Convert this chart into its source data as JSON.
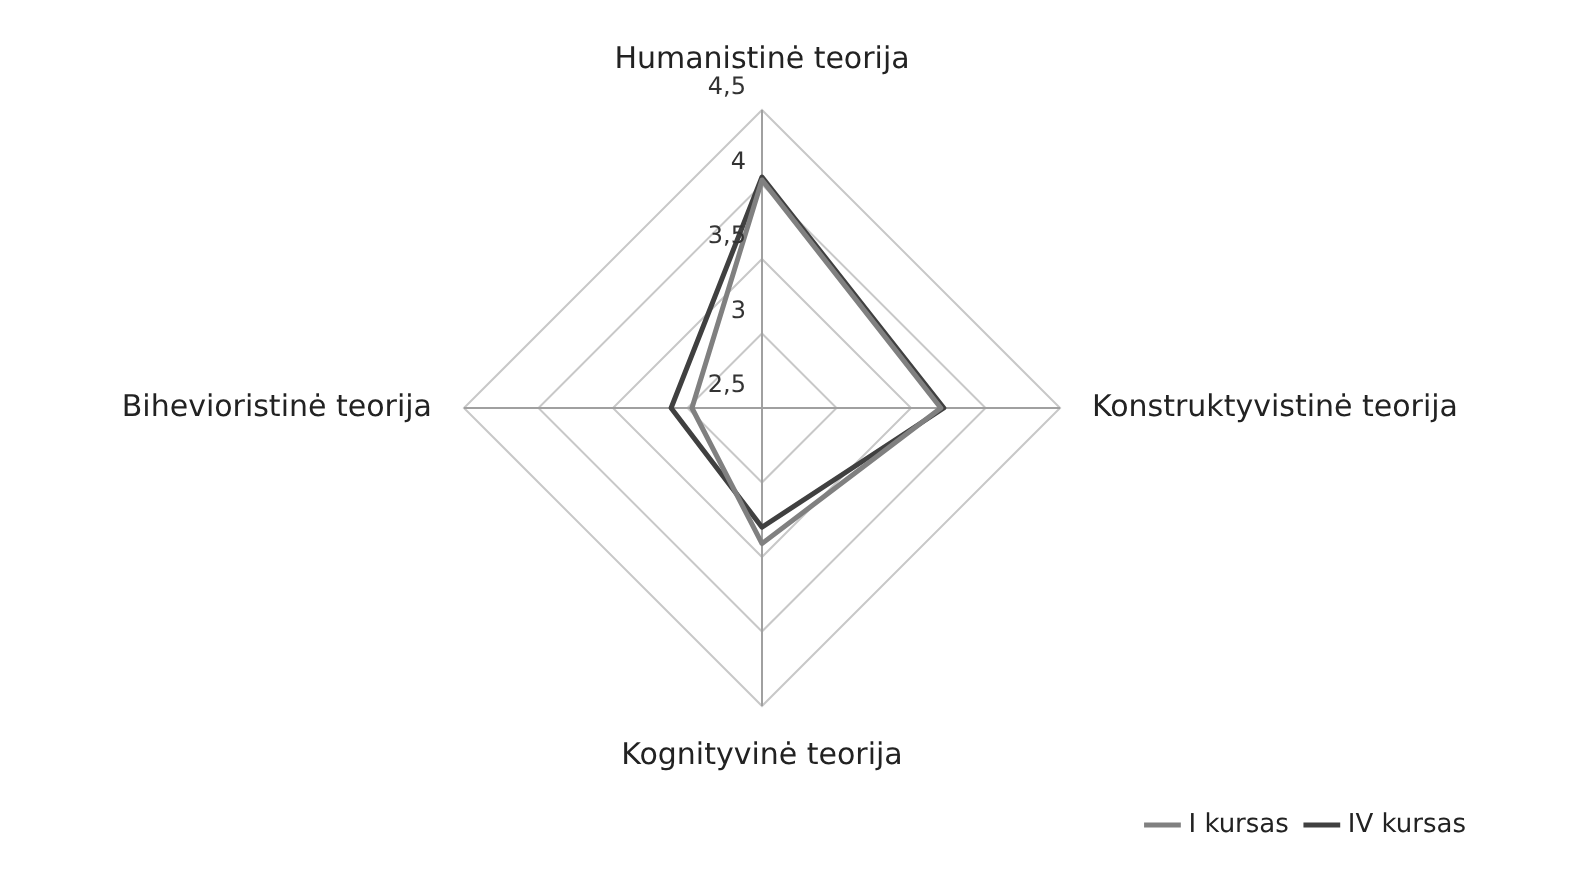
{
  "chart_data": {
    "type": "radar",
    "categories": [
      "Humanistinė teorija",
      "Konstruktyvistinė teorija",
      "Kognityvinė teorija",
      "Bihevioristinė teorija"
    ],
    "series": [
      {
        "name": "I kursas",
        "color": "#808080",
        "values": [
          4.03,
          3.7,
          3.41,
          2.97
        ]
      },
      {
        "name": "IV kursas",
        "color": "#404040",
        "values": [
          4.05,
          3.72,
          3.3,
          3.11
        ]
      }
    ],
    "ylim": [
      2.5,
      4.5
    ],
    "yticks": [
      {
        "value": 2.5,
        "label": "2,5"
      },
      {
        "value": 3,
        "label": "3"
      },
      {
        "value": 3.5,
        "label": "3,5"
      },
      {
        "value": 4,
        "label": "4"
      },
      {
        "value": 4.5,
        "label": "4,5"
      }
    ],
    "grid": true,
    "legend": "bottom right",
    "marker": "none",
    "line_style": "solid"
  }
}
